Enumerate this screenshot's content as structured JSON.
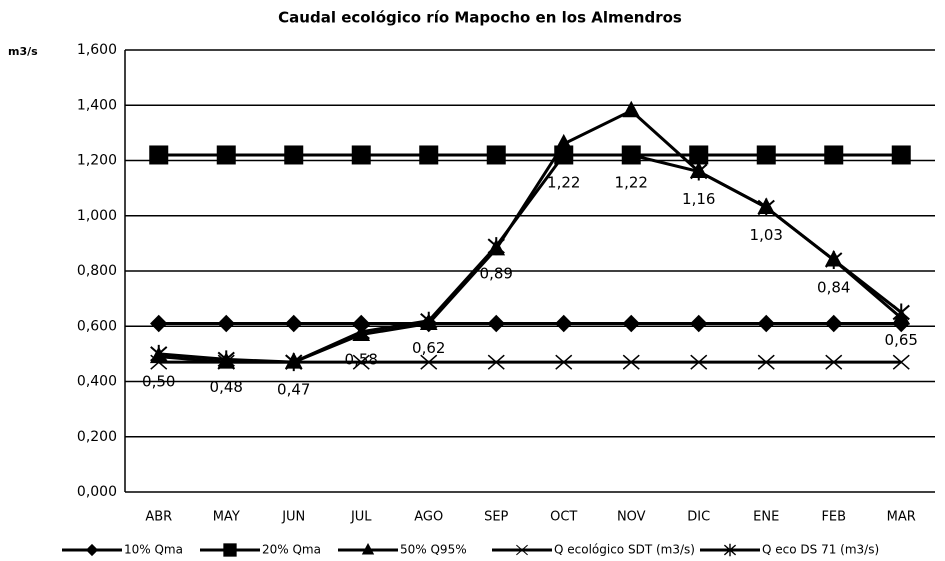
{
  "chart_data": {
    "type": "line",
    "title": "Caudal ecológico  río Mapocho en los Almendros",
    "y_label": "m3/s",
    "categories": [
      "ABR",
      "MAY",
      "JUN",
      "JUL",
      "AGO",
      "SEP",
      "OCT",
      "NOV",
      "DIC",
      "ENE",
      "FEB",
      "MAR"
    ],
    "ylim": [
      0,
      1.6
    ],
    "yticks": [
      {
        "value": 0,
        "label": "0,000"
      },
      {
        "value": 0.2,
        "label": "0,200"
      },
      {
        "value": 0.4,
        "label": "0,400"
      },
      {
        "value": 0.6,
        "label": "0,600"
      },
      {
        "value": 0.8,
        "label": "0,800"
      },
      {
        "value": 1.0,
        "label": "1,000"
      },
      {
        "value": 1.2,
        "label": "1,200"
      },
      {
        "value": 1.4,
        "label": "1,400"
      },
      {
        "value": 1.6,
        "label": "1,600"
      }
    ],
    "grid": true,
    "legend": "bottom",
    "series": [
      {
        "name": "10% Qma",
        "color": "#000000",
        "marker": "diamond",
        "values": [
          0.61,
          0.61,
          0.61,
          0.61,
          0.61,
          0.61,
          0.61,
          0.61,
          0.61,
          0.61,
          0.61,
          0.61
        ]
      },
      {
        "name": "20% Qma",
        "color": "#000000",
        "marker": "square",
        "values": [
          1.22,
          1.22,
          1.22,
          1.22,
          1.22,
          1.22,
          1.22,
          1.22,
          1.22,
          1.22,
          1.22,
          1.22
        ]
      },
      {
        "name": "50% Q95%",
        "color": "#000000",
        "marker": "triangle",
        "values": [
          0.49,
          0.47,
          0.47,
          0.57,
          0.61,
          0.88,
          1.26,
          1.38,
          1.16,
          1.03,
          0.84,
          0.63
        ]
      },
      {
        "name": "Q ecológico SDT (m3/s)",
        "color": "#000000",
        "marker": "x",
        "values": [
          0.47,
          0.47,
          0.47,
          0.47,
          0.47,
          0.47,
          0.47,
          0.47,
          0.47,
          0.47,
          0.47,
          0.47
        ]
      },
      {
        "name": "Q eco DS 71 (m3/s)",
        "color": "#000000",
        "marker": "star",
        "values": [
          0.5,
          0.48,
          0.47,
          0.58,
          0.62,
          0.89,
          1.22,
          1.22,
          1.16,
          1.03,
          0.84,
          0.65
        ],
        "value_labels": [
          "0,50",
          "0,48",
          "0,47",
          "0,58",
          "0,62",
          "0,89",
          "1,22",
          "1,22",
          "1,16",
          "1,03",
          "0,84",
          "0,65"
        ]
      }
    ]
  }
}
